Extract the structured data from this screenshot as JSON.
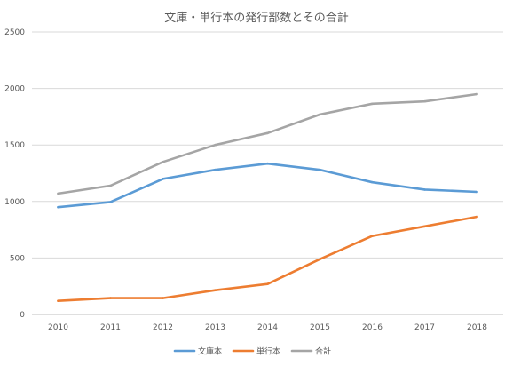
{
  "chart_data": {
    "type": "line",
    "title": "文庫・単行本の発行部数とその合計",
    "xlabel": "",
    "ylabel": "",
    "categories": [
      "2010",
      "2011",
      "2012",
      "2013",
      "2014",
      "2015",
      "2016",
      "2017",
      "2018"
    ],
    "yticks": [
      "0",
      "500",
      "1000",
      "1500",
      "2000",
      "2500"
    ],
    "ylim": [
      0,
      2500
    ],
    "grid": true,
    "legend_position": "bottom",
    "series": [
      {
        "name": "文庫本",
        "color": "#5B9BD5",
        "values": [
          950,
          995,
          1200,
          1280,
          1335,
          1280,
          1170,
          1105,
          1085
        ]
      },
      {
        "name": "単行本",
        "color": "#ED7D31",
        "values": [
          120,
          145,
          145,
          215,
          270,
          490,
          695,
          780,
          865
        ]
      },
      {
        "name": "合計",
        "color": "#A5A5A5",
        "values": [
          1070,
          1140,
          1350,
          1500,
          1605,
          1770,
          1865,
          1885,
          1950
        ]
      }
    ]
  }
}
